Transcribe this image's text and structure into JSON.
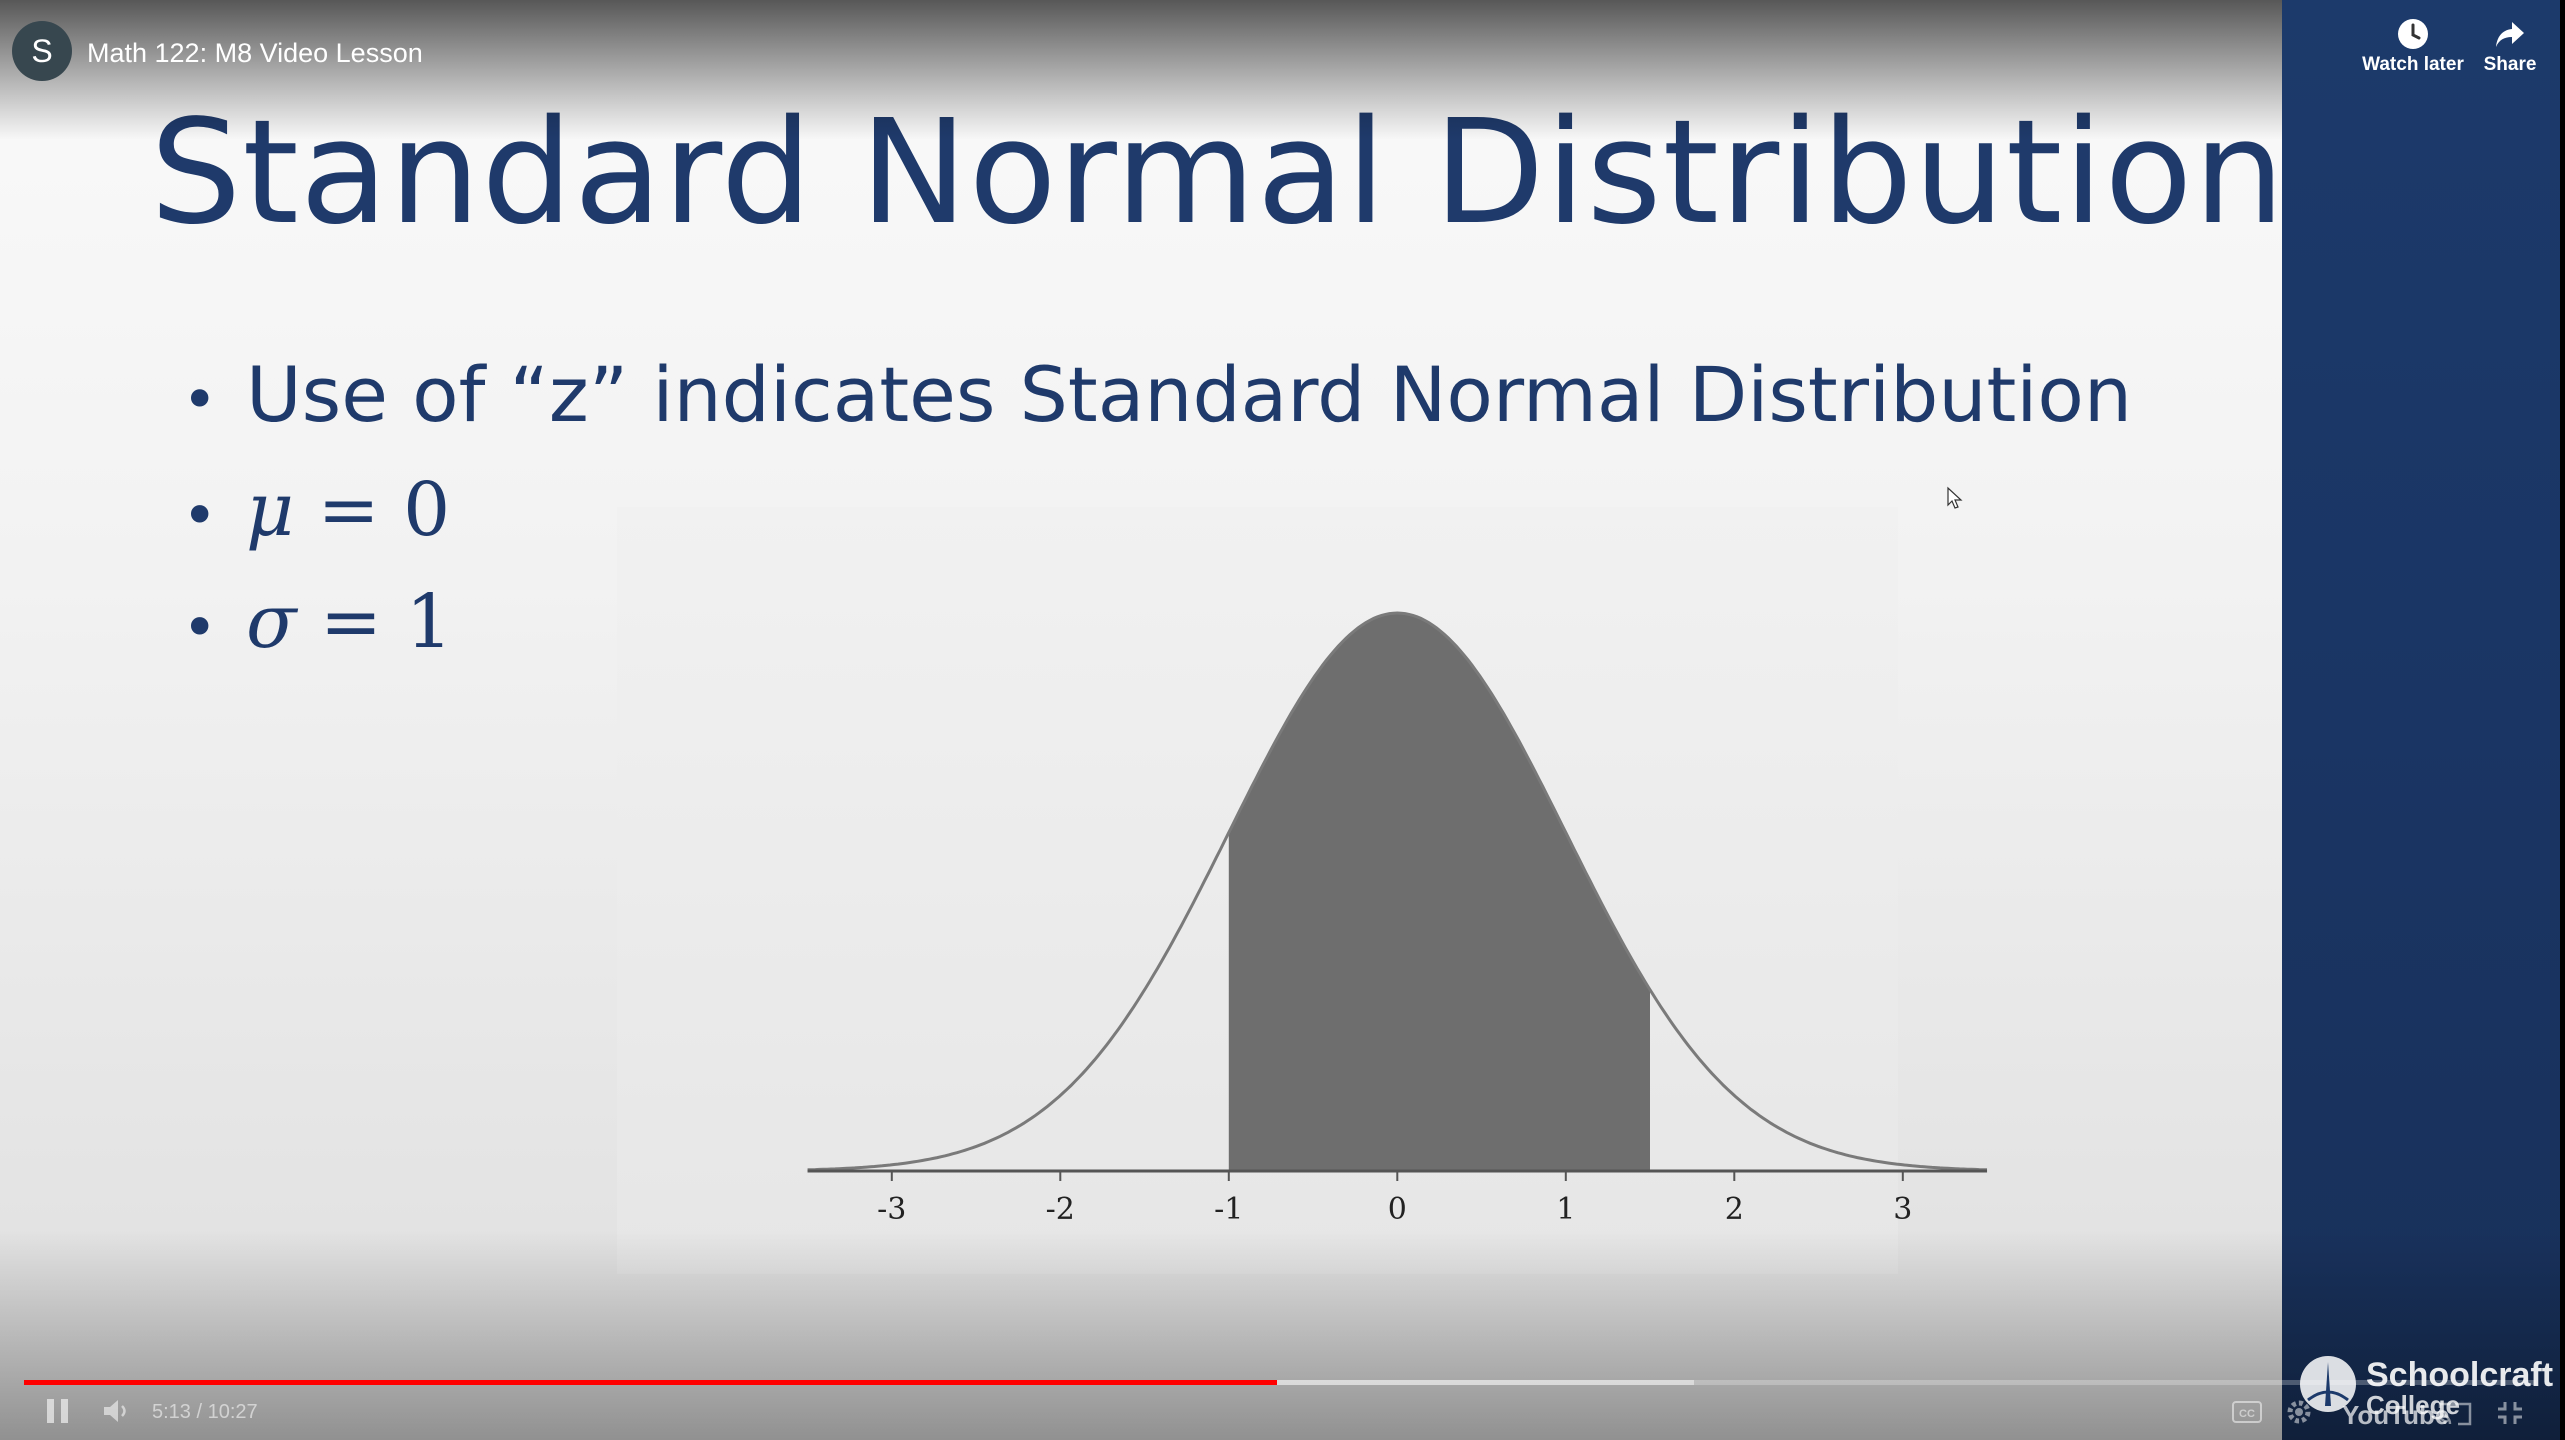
{
  "player": {
    "video_title": "Math 122: M8 Video Lesson",
    "channel_initial": "S",
    "watch_later_label": "Watch later",
    "share_label": "Share",
    "time_display": "5:13 / 10:27",
    "progress_fraction": 0.499,
    "buffered_fraction": 0.665,
    "progress_color": "#ff0000",
    "youtube_logo_text": "YouTube"
  },
  "slide": {
    "title": "Standard Normal Distribution",
    "bullet_symbol": "•",
    "bullets": [
      {
        "text": "Use of “z” indicates Standard Normal Distribution"
      },
      {
        "var": "μ",
        "rest": " = 0"
      },
      {
        "var": "σ",
        "rest": " = 1"
      }
    ],
    "title_color": "#1f3a6b",
    "side_panel_color": "#1c3a6b"
  },
  "brand": {
    "name": "Schoolcraft",
    "sub": "College"
  },
  "chart_data": {
    "type": "area",
    "title": "",
    "xlabel": "",
    "ylabel": "",
    "distribution": "standard normal",
    "mean": 0,
    "sd": 1,
    "xlim": [
      -3.5,
      3.5
    ],
    "x_ticks": [
      -3,
      -2,
      -1,
      0,
      1,
      2,
      3
    ],
    "x_tick_labels": [
      "-3",
      "-2",
      "-1",
      "0",
      "1",
      "2",
      "3"
    ],
    "shaded_region": [
      -1,
      1.5
    ],
    "fill_color": "#6e6e6e",
    "line_color": "#7a7a7a"
  }
}
